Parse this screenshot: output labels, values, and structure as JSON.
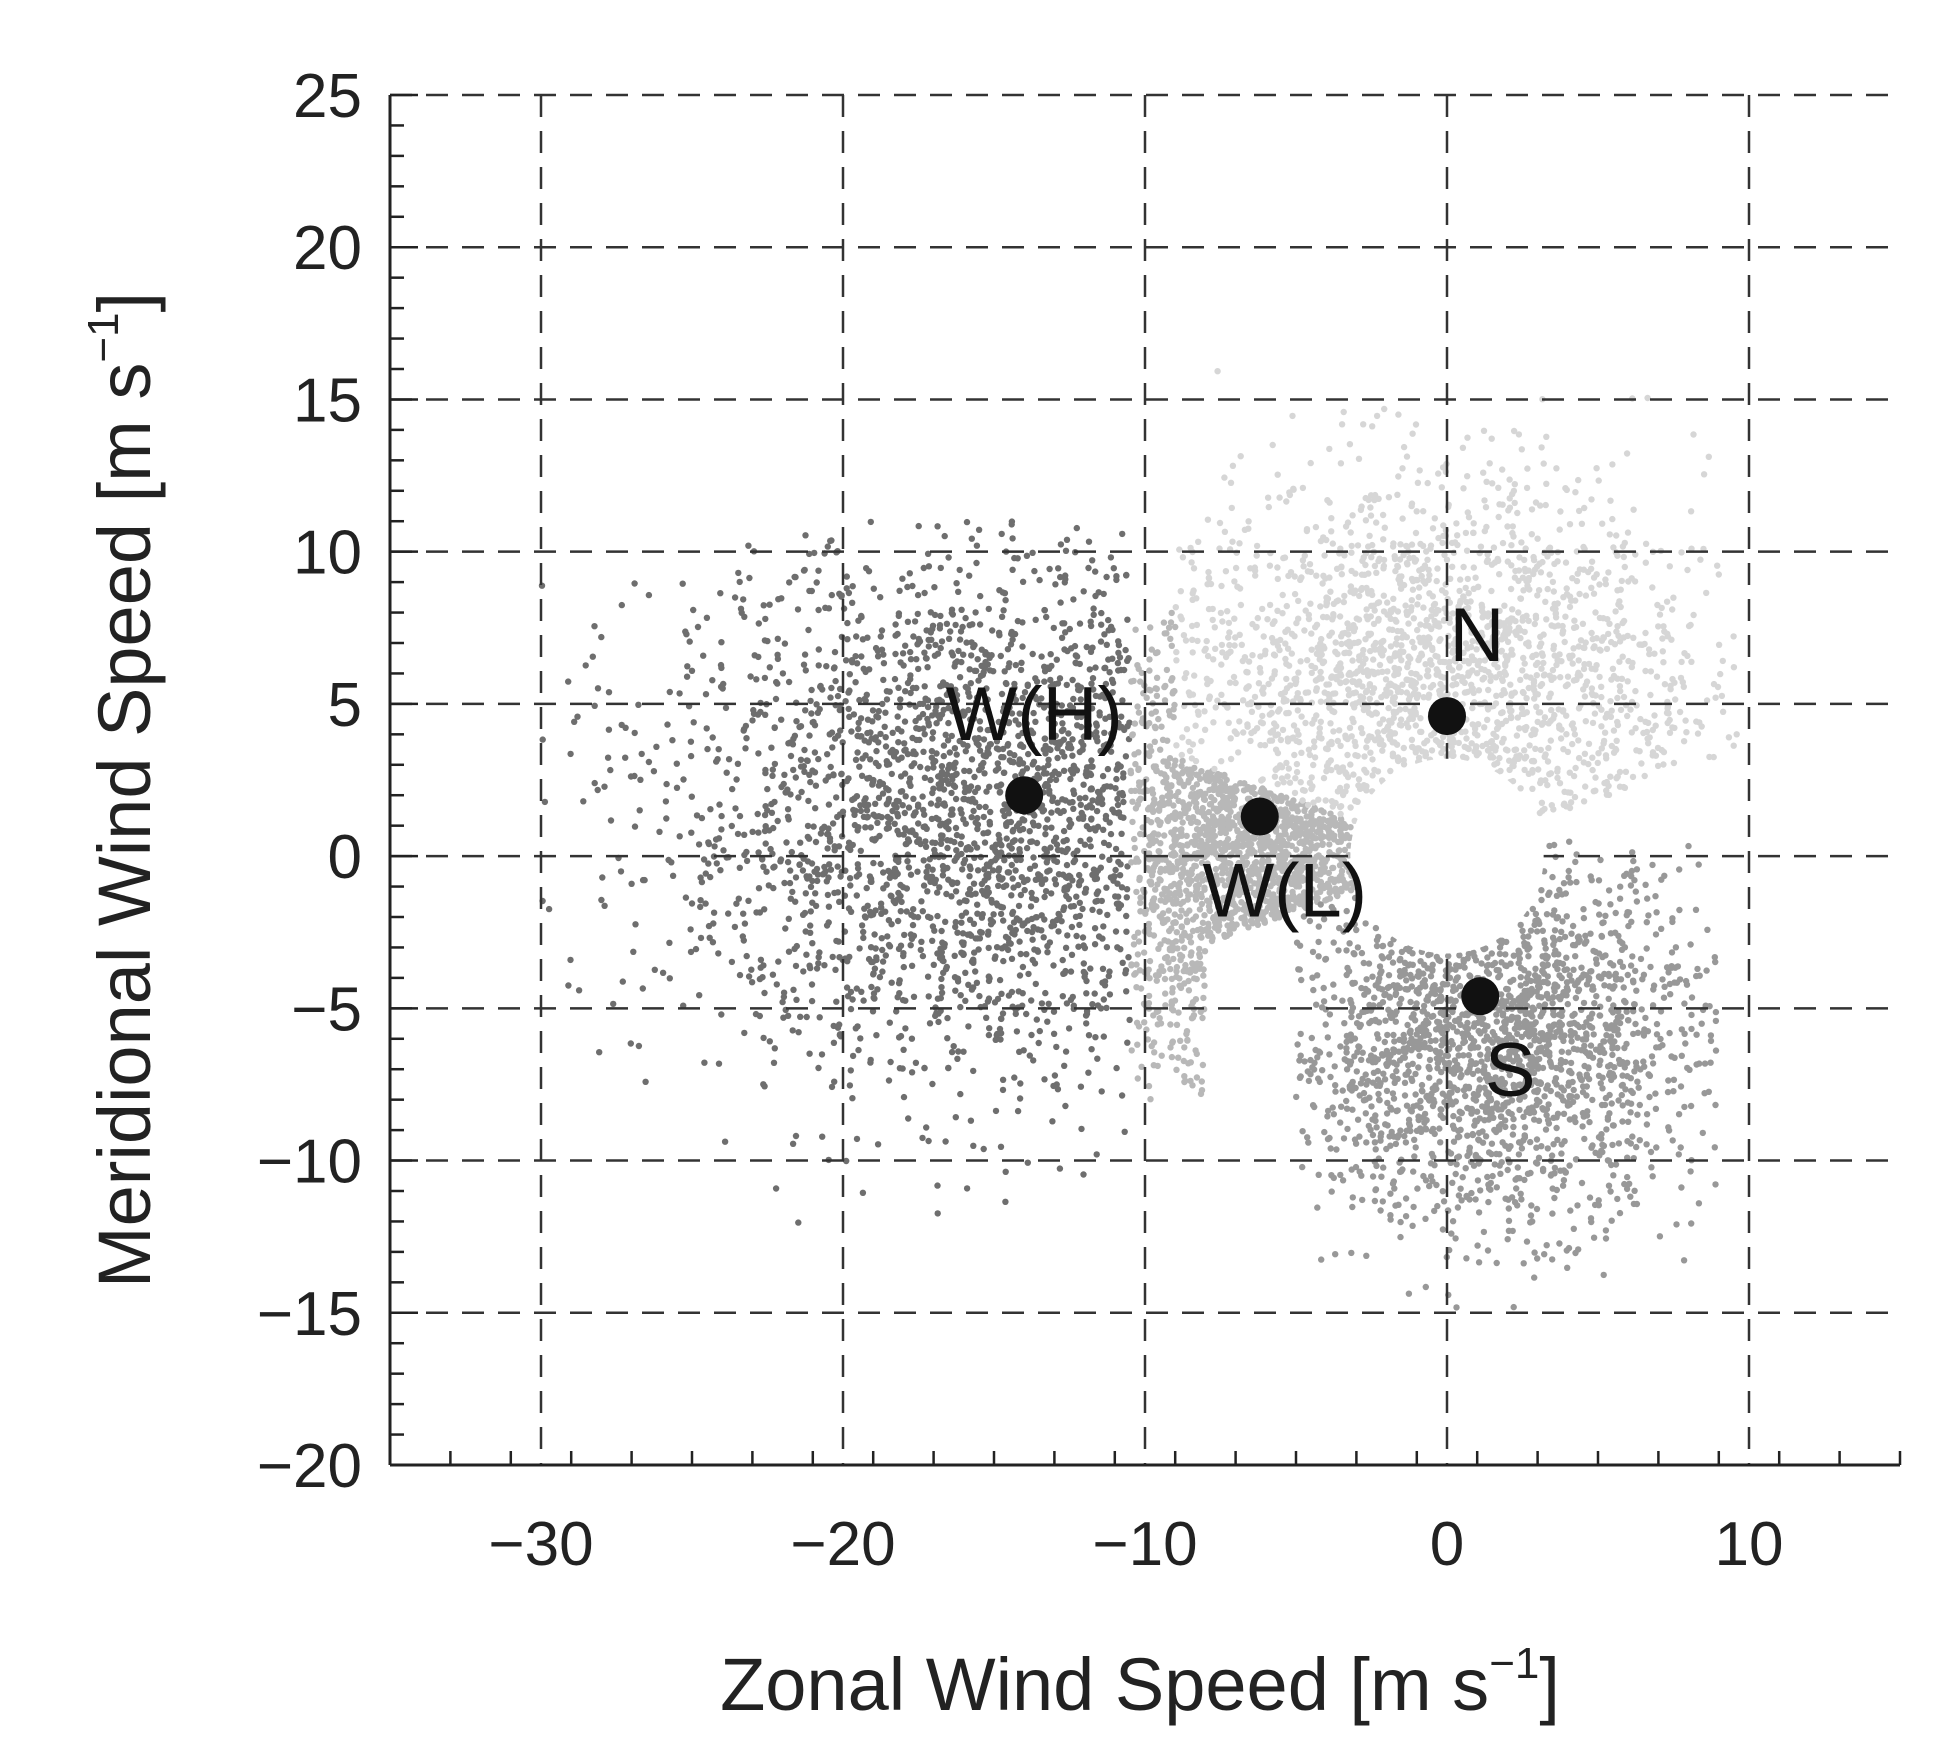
{
  "chart_data": {
    "type": "scatter",
    "xlabel": "Zonal Wind Speed [m s",
    "ylabel": "Meridional Wind Speed [m s",
    "unit_superscript": "−1",
    "unit_close": "]",
    "xlim": [
      -35,
      15
    ],
    "ylim": [
      -20,
      25
    ],
    "x_ticks": [
      -30,
      -20,
      -10,
      0,
      10
    ],
    "x_tick_labels": [
      "−30",
      "−20",
      "−10",
      "0",
      "10"
    ],
    "y_ticks": [
      -20,
      -15,
      -10,
      -5,
      0,
      5,
      10,
      15,
      20,
      25
    ],
    "y_tick_labels": [
      "−20",
      "−15",
      "−10",
      "−5",
      "0",
      "5",
      "10",
      "15",
      "20",
      "25"
    ],
    "grid": true,
    "grid_style": "dashed",
    "excluded_calm_radius": 3.2,
    "series": [
      {
        "name": "W(H)",
        "color": "#6e6e6e",
        "centroid": [
          -14.0,
          2.0
        ],
        "u_range": [
          -30,
          -10.5
        ],
        "v_range": [
          -13,
          11
        ]
      },
      {
        "name": "W(L)",
        "color": "#b8b8b8",
        "centroid": [
          -6.2,
          1.3
        ],
        "u_range": [
          -11,
          -3
        ],
        "v_range": [
          -8,
          8
        ]
      },
      {
        "name": "N",
        "color": "#d6d6d6",
        "centroid": [
          0.0,
          4.6
        ],
        "u_range": [
          -10,
          10
        ],
        "v_range": [
          0,
          17
        ]
      },
      {
        "name": "S",
        "color": "#989898",
        "centroid": [
          1.1,
          -4.6
        ],
        "u_range": [
          -5,
          9
        ],
        "v_range": [
          -15,
          0.5
        ]
      }
    ]
  },
  "colors": {
    "centroid_marker": "#111111",
    "axis": "#222222",
    "grid": "#333333"
  }
}
